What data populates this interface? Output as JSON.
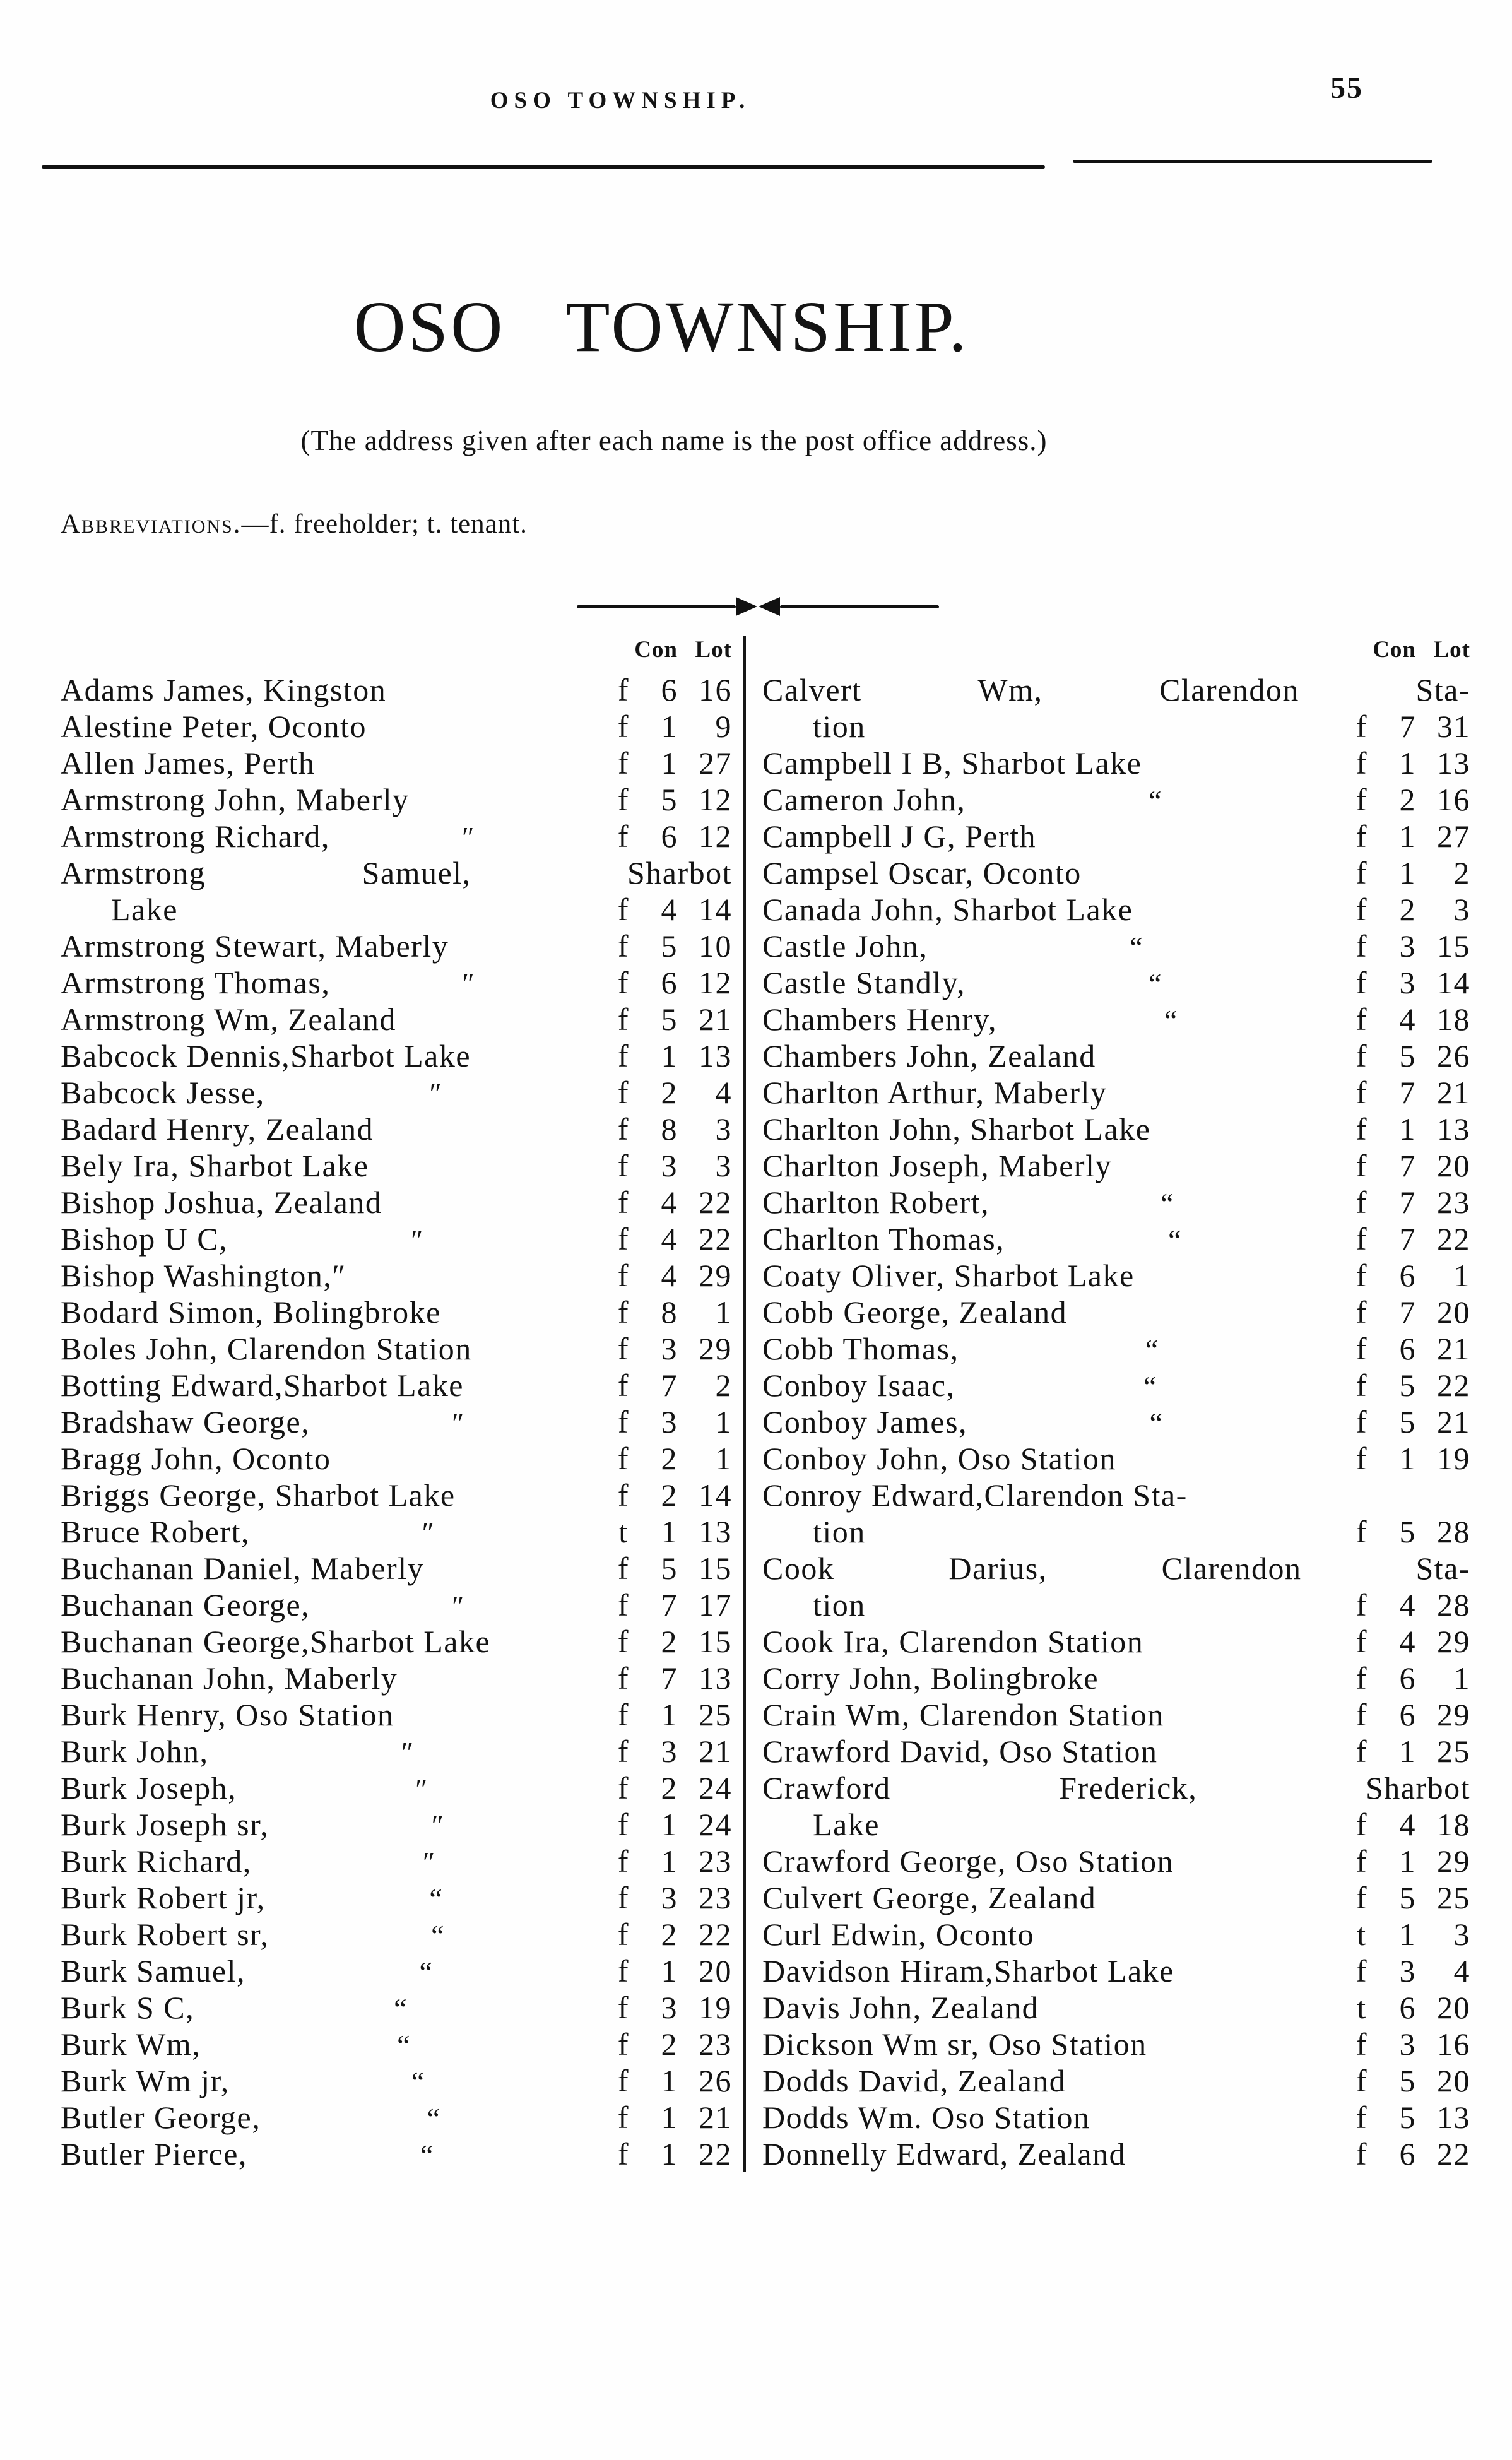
{
  "page": {
    "running_head": "OSO TOWNSHIP.",
    "page_number": "55",
    "title": "OSO TOWNSHIP.",
    "subtitle": "(The address given after each name is the post office address.)",
    "abbreviations_label": "Abbreviations.",
    "abbreviations_text": "—f. freeholder; t. tenant.",
    "col_header_con": "Con",
    "col_header_lot": "Lot"
  },
  "left_column": {
    "rows": [
      {
        "name": "Adams James, Kingston",
        "ten": "f",
        "con": "6",
        "lot": "16"
      },
      {
        "name": "Alestine Peter, Oconto",
        "ten": "f",
        "con": "1",
        "lot": "9"
      },
      {
        "name": "Allen James, Perth",
        "ten": "f",
        "con": "1",
        "lot": "27"
      },
      {
        "name": "Armstrong John, Maberly",
        "ten": "f",
        "con": "5",
        "lot": "12"
      },
      {
        "name": "Armstrong Richard,",
        "ditto": "″",
        "ten": "f",
        "con": "6",
        "lot": "12"
      },
      {
        "name": "Armstrong Samuel, Sharbot",
        "spread": true
      },
      {
        "name": "Lake",
        "indent": true,
        "ten": "f",
        "con": "4",
        "lot": "14"
      },
      {
        "name": "Armstrong Stewart, Maberly",
        "ten": "f",
        "con": "5",
        "lot": "10"
      },
      {
        "name": "Armstrong Thomas,",
        "ditto": "″",
        "ten": "f",
        "con": "6",
        "lot": "12"
      },
      {
        "name": "Armstrong Wm, Zealand",
        "ten": "f",
        "con": "5",
        "lot": "21"
      },
      {
        "name": "Babcock Dennis,Sharbot Lake",
        "ten": "f",
        "con": "1",
        "lot": "13"
      },
      {
        "name": "Babcock Jesse,",
        "ditto": "″",
        "ten": "f",
        "con": "2",
        "lot": "4"
      },
      {
        "name": "Badard Henry, Zealand",
        "ten": "f",
        "con": "8",
        "lot": "3"
      },
      {
        "name": "Bely Ira, Sharbot Lake",
        "ten": "f",
        "con": "3",
        "lot": "3"
      },
      {
        "name": "Bishop Joshua, Zealand",
        "ten": "f",
        "con": "4",
        "lot": "22"
      },
      {
        "name": "Bishop U C,",
        "ditto": "″",
        "ten": "f",
        "con": "4",
        "lot": "22"
      },
      {
        "name": "Bishop Washington,″",
        "ten": "f",
        "con": "4",
        "lot": "29"
      },
      {
        "name": "Bodard Simon, Bolingbroke",
        "ten": "f",
        "con": "8",
        "lot": "1"
      },
      {
        "name": "Boles John, Clarendon Station",
        "ten": "f",
        "con": "3",
        "lot": "29"
      },
      {
        "name": "Botting Edward,Sharbot Lake",
        "ten": "f",
        "con": "7",
        "lot": "2"
      },
      {
        "name": "Bradshaw George,",
        "ditto": "″",
        "ten": "f",
        "con": "3",
        "lot": "1"
      },
      {
        "name": "Bragg John, Oconto",
        "ten": "f",
        "con": "2",
        "lot": "1"
      },
      {
        "name": "Briggs George, Sharbot Lake",
        "ten": "f",
        "con": "2",
        "lot": "14"
      },
      {
        "name": "Bruce Robert,",
        "ditto": "″",
        "ten": "t",
        "con": "1",
        "lot": "13"
      },
      {
        "name": "Buchanan Daniel, Maberly",
        "ten": "f",
        "con": "5",
        "lot": "15"
      },
      {
        "name": "Buchanan George,",
        "ditto": "″",
        "ten": "f",
        "con": "7",
        "lot": "17"
      },
      {
        "name": "Buchanan George,Sharbot Lake",
        "ten": "f",
        "con": "2",
        "lot": "15"
      },
      {
        "name": "Buchanan John, Maberly",
        "ten": "f",
        "con": "7",
        "lot": "13"
      },
      {
        "name": "Burk Henry, Oso Station",
        "ten": "f",
        "con": "1",
        "lot": "25"
      },
      {
        "name": "Burk John,",
        "ditto": "″",
        "ten": "f",
        "con": "3",
        "lot": "21"
      },
      {
        "name": "Burk Joseph,",
        "ditto": "″",
        "ten": "f",
        "con": "2",
        "lot": "24"
      },
      {
        "name": "Burk Joseph sr,",
        "ditto": "″",
        "ten": "f",
        "con": "1",
        "lot": "24"
      },
      {
        "name": "Burk Richard,",
        "ditto": "″",
        "ten": "f",
        "con": "1",
        "lot": "23"
      },
      {
        "name": "Burk Robert jr,",
        "ditto": "“",
        "ten": "f",
        "con": "3",
        "lot": "23"
      },
      {
        "name": "Burk Robert sr,",
        "ditto": "“",
        "ten": "f",
        "con": "2",
        "lot": "22"
      },
      {
        "name": "Burk Samuel,",
        "ditto": "“",
        "ten": "f",
        "con": "1",
        "lot": "20"
      },
      {
        "name": "Burk S C,",
        "ditto": "“",
        "ten": "f",
        "con": "3",
        "lot": "19"
      },
      {
        "name": "Burk Wm,",
        "ditto": "“",
        "ten": "f",
        "con": "2",
        "lot": "23"
      },
      {
        "name": "Burk Wm jr,",
        "ditto": "“",
        "ten": "f",
        "con": "1",
        "lot": "26"
      },
      {
        "name": "Butler George,",
        "ditto": "“",
        "ten": "f",
        "con": "1",
        "lot": "21"
      },
      {
        "name": "Butler Pierce,",
        "ditto": "“",
        "ten": "f",
        "con": "1",
        "lot": "22"
      }
    ]
  },
  "right_column": {
    "rows": [
      {
        "name": "Calvert Wm, Clarendon Sta-",
        "spread": true
      },
      {
        "name": "tion",
        "indent": true,
        "ten": "f",
        "con": "7",
        "lot": "31"
      },
      {
        "name": "Campbell I B, Sharbot Lake",
        "ten": "f",
        "con": "1",
        "lot": "13"
      },
      {
        "name": "Cameron John,",
        "ditto": "“",
        "ten": "f",
        "con": "2",
        "lot": "16"
      },
      {
        "name": "Campbell J G, Perth",
        "ten": "f",
        "con": "1",
        "lot": "27"
      },
      {
        "name": "Campsel Oscar, Oconto",
        "ten": "f",
        "con": "1",
        "lot": "2"
      },
      {
        "name": "Canada John, Sharbot Lake",
        "ten": "f",
        "con": "2",
        "lot": "3"
      },
      {
        "name": "Castle John,",
        "ditto": "“",
        "ten": "f",
        "con": "3",
        "lot": "15"
      },
      {
        "name": "Castle Standly,",
        "ditto": "“",
        "ten": "f",
        "con": "3",
        "lot": "14"
      },
      {
        "name": "Chambers Henry,",
        "ditto": "“",
        "ten": "f",
        "con": "4",
        "lot": "18"
      },
      {
        "name": "Chambers John, Zealand",
        "ten": "f",
        "con": "5",
        "lot": "26"
      },
      {
        "name": "Charlton Arthur, Maberly",
        "ten": "f",
        "con": "7",
        "lot": "21"
      },
      {
        "name": "Charlton John, Sharbot Lake",
        "ten": "f",
        "con": "1",
        "lot": "13"
      },
      {
        "name": "Charlton Joseph, Maberly",
        "ten": "f",
        "con": "7",
        "lot": "20"
      },
      {
        "name": "Charlton Robert,",
        "ditto": "“",
        "ten": "f",
        "con": "7",
        "lot": "23"
      },
      {
        "name": "Charlton Thomas,",
        "ditto": "“",
        "ten": "f",
        "con": "7",
        "lot": "22"
      },
      {
        "name": "Coaty Oliver, Sharbot Lake",
        "ten": "f",
        "con": "6",
        "lot": "1"
      },
      {
        "name": "Cobb George, Zealand",
        "ten": "f",
        "con": "7",
        "lot": "20"
      },
      {
        "name": "Cobb Thomas,",
        "ditto": "“",
        "ten": "f",
        "con": "6",
        "lot": "21"
      },
      {
        "name": "Conboy Isaac,",
        "ditto": "“",
        "ten": "f",
        "con": "5",
        "lot": "22"
      },
      {
        "name": "Conboy James,",
        "ditto": "“",
        "ten": "f",
        "con": "5",
        "lot": "21"
      },
      {
        "name": "Conboy John, Oso Station",
        "ten": "f",
        "con": "1",
        "lot": "19"
      },
      {
        "name": "Conroy Edward,Clarendon Sta-"
      },
      {
        "name": "tion",
        "indent": true,
        "ten": "f",
        "con": "5",
        "lot": "28"
      },
      {
        "name": "Cook Darius, Clarendon Sta-",
        "spread": true
      },
      {
        "name": "tion",
        "indent": true,
        "ten": "f",
        "con": "4",
        "lot": "28"
      },
      {
        "name": "Cook Ira, Clarendon Station",
        "ten": "f",
        "con": "4",
        "lot": "29"
      },
      {
        "name": "Corry John, Bolingbroke",
        "ten": "f",
        "con": "6",
        "lot": "1"
      },
      {
        "name": "Crain Wm, Clarendon Station",
        "ten": "f",
        "con": "6",
        "lot": "29"
      },
      {
        "name": "Crawford David, Oso Station",
        "ten": "f",
        "con": "1",
        "lot": "25"
      },
      {
        "name": "Crawford Frederick, Sharbot",
        "spread": true
      },
      {
        "name": "Lake",
        "indent": true,
        "ten": "f",
        "con": "4",
        "lot": "18"
      },
      {
        "name": "Crawford George, Oso Station",
        "ten": "f",
        "con": "1",
        "lot": "29"
      },
      {
        "name": "Culvert George, Zealand",
        "ten": "f",
        "con": "5",
        "lot": "25"
      },
      {
        "name": "Curl Edwin, Oconto",
        "ten": "t",
        "con": "1",
        "lot": "3"
      },
      {
        "name": "Davidson Hiram,Sharbot Lake",
        "ten": "f",
        "con": "3",
        "lot": "4"
      },
      {
        "name": "Davis John, Zealand",
        "ten": "t",
        "con": "6",
        "lot": "20"
      },
      {
        "name": "Dickson Wm sr, Oso Station",
        "ten": "f",
        "con": "3",
        "lot": "16"
      },
      {
        "name": "Dodds David, Zealand",
        "ten": "f",
        "con": "5",
        "lot": "20"
      },
      {
        "name": "Dodds Wm. Oso Station",
        "ten": "f",
        "con": "5",
        "lot": "13"
      },
      {
        "name": "Donnelly Edward, Zealand",
        "ten": "f",
        "con": "6",
        "lot": "22"
      }
    ]
  }
}
